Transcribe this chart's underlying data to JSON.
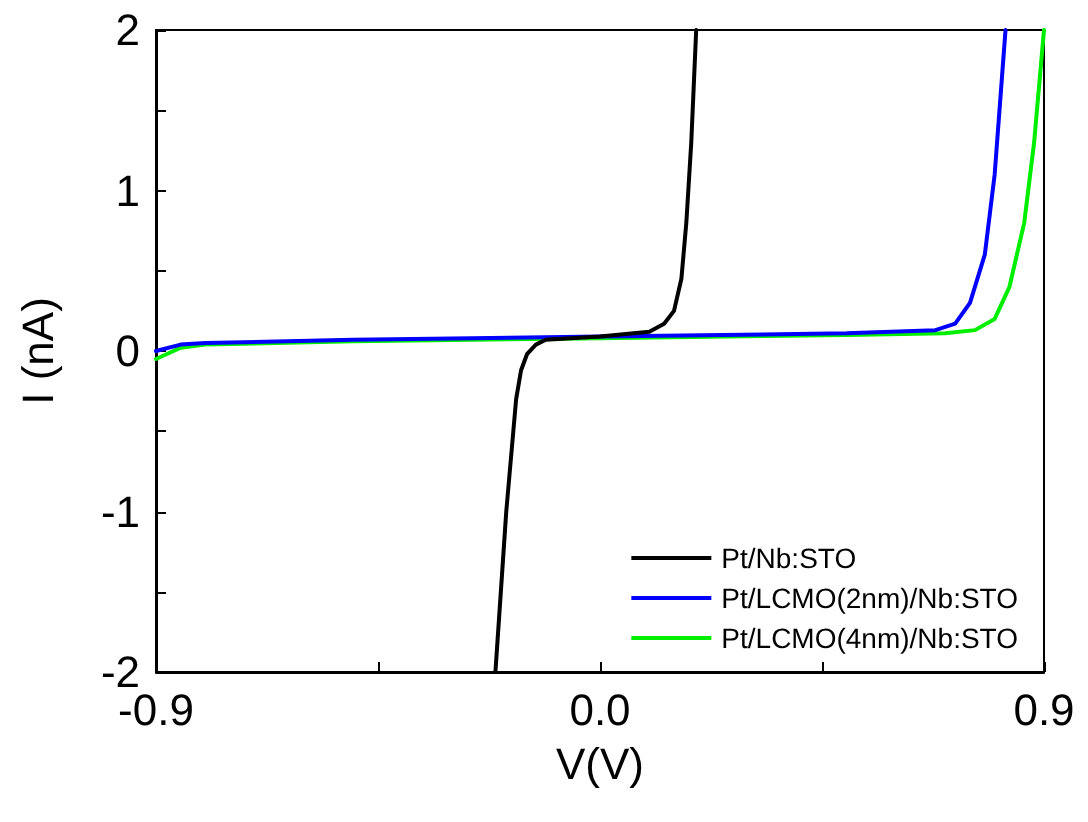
{
  "chart_data": {
    "type": "line",
    "xlabel": "V(V)",
    "ylabel": "I (nA)",
    "xlim": [
      -0.9,
      0.9
    ],
    "ylim": [
      -2,
      2
    ],
    "xticks": [
      -0.9,
      {
        "value": -0.45,
        "label": null
      },
      {
        "value": 0,
        "label": "0.0"
      },
      {
        "value": 0.45,
        "label": null
      },
      0.9
    ],
    "yticks": [
      -2,
      {
        "value": -1.5,
        "label": null
      },
      -1,
      {
        "value": -0.5,
        "label": null
      },
      0,
      {
        "value": 0.5,
        "label": null
      },
      1,
      {
        "value": 1.5,
        "label": null
      },
      2
    ],
    "grid": false,
    "legend": "bottom right",
    "marker": "none",
    "line_style": "solid",
    "series": [
      {
        "name": "Pt/Nb:STO",
        "color": "#000000",
        "x": [
          -0.212,
          -0.19,
          -0.17,
          -0.16,
          -0.148,
          -0.13,
          -0.11,
          0,
          0.1,
          0.13,
          0.15,
          0.165,
          0.175,
          0.185,
          0.195
        ],
        "values": [
          -2,
          -1,
          -0.3,
          -0.12,
          -0.02,
          0.04,
          0.07,
          0.09,
          0.12,
          0.17,
          0.25,
          0.45,
          0.8,
          1.3,
          2
        ]
      },
      {
        "name": "Pt/LCMO(2nm)/Nb:STO",
        "color": "#0000ff",
        "x": [
          -0.9,
          -0.85,
          -0.8,
          -0.5,
          0,
          0.5,
          0.68,
          0.72,
          0.75,
          0.78,
          0.8,
          0.822
        ],
        "values": [
          0,
          0.04,
          0.05,
          0.07,
          0.09,
          0.11,
          0.13,
          0.17,
          0.3,
          0.6,
          1.1,
          2
        ]
      },
      {
        "name": "Pt/LCMO(4nm)/Nb:STO",
        "color": "#00ee00",
        "x": [
          -0.9,
          -0.85,
          -0.8,
          -0.5,
          0,
          0.5,
          0.7,
          0.76,
          0.8,
          0.83,
          0.86,
          0.88,
          0.9
        ],
        "values": [
          -0.05,
          0.02,
          0.04,
          0.06,
          0.08,
          0.1,
          0.11,
          0.13,
          0.2,
          0.4,
          0.8,
          1.3,
          2
        ]
      }
    ]
  }
}
